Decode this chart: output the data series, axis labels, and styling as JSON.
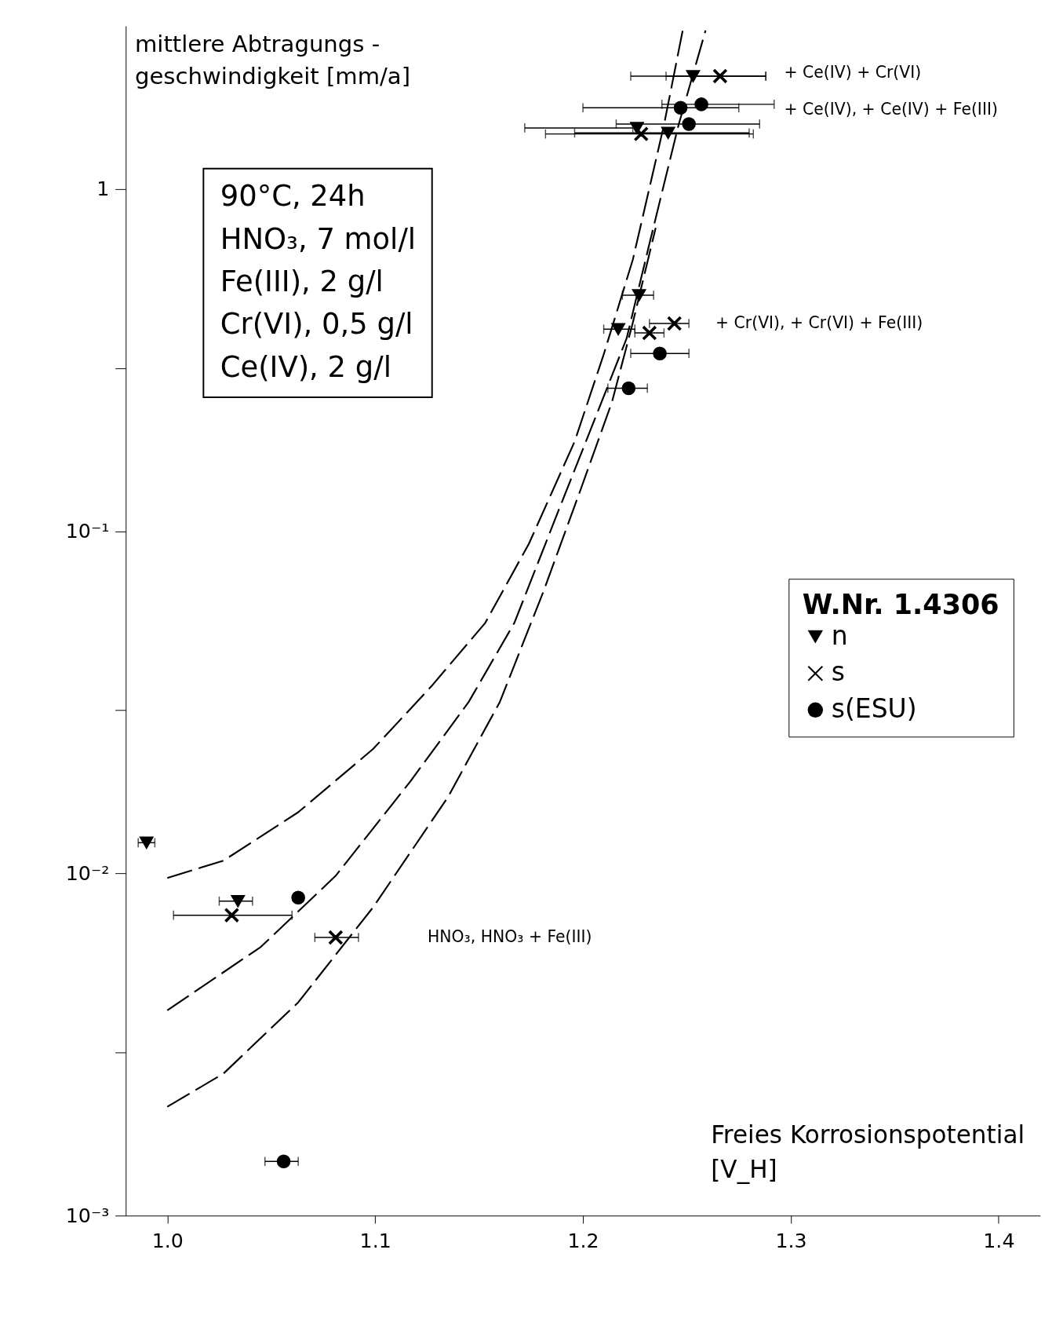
{
  "chart_data": {
    "type": "scatter",
    "ylabel": "mittlere Abtragungs -\ngeschwindigkeit [mm/a]",
    "xlabel": "Freies Korrosionspotential\n[V_H]",
    "legend_title": "W.Nr. 1.4306",
    "legend": "right",
    "grid": false,
    "log": "y",
    "xlim": [
      0.98,
      1.42
    ],
    "xticks": [
      {
        "value": 1.0,
        "label": "1.0"
      },
      1.1,
      1.2,
      1.3,
      1.4
    ],
    "ylim": [
      0.001,
      3
    ],
    "yticks": [
      {
        "value": 0.001,
        "label": "10⁻³"
      },
      {
        "value": 0.003,
        "label": null
      },
      {
        "value": 0.01,
        "label": "10⁻²"
      },
      {
        "value": 0.03,
        "label": null
      },
      {
        "value": 0.1,
        "label": "10⁻¹"
      },
      {
        "value": 0.3,
        "label": null
      },
      1
    ],
    "series": [
      {
        "name": "n",
        "color": "#000000",
        "marker": "triangle",
        "x": [
          1.253,
          1.226,
          1.241,
          1.227,
          1.217,
          0.99,
          1.034
        ],
        "values": [
          2.14,
          1.51,
          1.46,
          0.49,
          0.39,
          0.0123,
          0.0083
        ],
        "xerrors": [
          [
            1.223,
            1.288
          ],
          [
            1.172,
            1.224
          ],
          [
            1.196,
            1.28
          ],
          [
            1.219,
            1.234
          ],
          [
            1.21,
            1.225
          ],
          [
            0.986,
            0.994
          ],
          [
            1.025,
            1.041
          ]
        ]
      },
      {
        "name": "s",
        "color": "#000000",
        "marker": "cross",
        "x": [
          1.266,
          1.228,
          1.244,
          1.232
        ],
        "values": [
          2.14,
          1.45,
          0.405,
          0.38
        ],
        "xerrors": [
          [
            1.24,
            1.288
          ],
          [
            1.182,
            1.282
          ],
          [
            1.232,
            1.251
          ],
          [
            1.225,
            1.239
          ]
        ]
      },
      {
        "name": "s(ESU)",
        "color": "#000000",
        "marker": "circle",
        "x": [
          1.257,
          1.247,
          1.251,
          1.237,
          1.222,
          1.063,
          1.056
        ],
        "values": [
          1.77,
          1.73,
          1.55,
          0.331,
          0.262,
          0.0085,
          0.00144
        ],
        "xerrors": [
          [
            1.238,
            1.292
          ],
          [
            1.2,
            1.275
          ],
          [
            1.216,
            1.285
          ],
          [
            1.223,
            1.251
          ],
          [
            1.212,
            1.231
          ],
          null,
          [
            1.047,
            1.063
          ]
        ]
      },
      {
        "type": "scatter",
        "color": "#000000",
        "marker": "cross",
        "x": [
          1.031,
          1.081
        ],
        "values": [
          0.00755,
          0.0065
        ],
        "xerrors": [
          [
            1.003,
            1.06
          ],
          [
            1.071,
            1.092
          ]
        ]
      },
      {
        "type": "line",
        "color": "#000000",
        "line_style": "dashed",
        "x": [
          1.0,
          1.027,
          1.063,
          1.099,
          1.127,
          1.153,
          1.174,
          1.196,
          1.21,
          1.224,
          1.239,
          1.248
        ],
        "values": [
          0.0097,
          0.0109,
          0.0151,
          0.0231,
          0.0352,
          0.054,
          0.092,
          0.183,
          0.329,
          0.622,
          1.54,
          2.91
        ]
      },
      {
        "type": "line",
        "color": "#000000",
        "line_style": "dashed",
        "x": [
          1.0,
          1.045,
          1.081,
          1.117,
          1.145,
          1.167,
          1.188,
          1.206,
          1.221,
          1.232,
          1.246,
          1.259
        ],
        "values": [
          0.00398,
          0.0061,
          0.00984,
          0.0186,
          0.0317,
          0.054,
          0.114,
          0.215,
          0.366,
          0.693,
          1.54,
          2.91
        ]
      },
      {
        "type": "line",
        "color": "#000000",
        "line_style": "dashed",
        "x": [
          1.0,
          1.027,
          1.063,
          1.099,
          1.135,
          1.16,
          1.181,
          1.199,
          1.214,
          1.224,
          1.235
        ],
        "values": [
          0.00208,
          0.0026,
          0.0042,
          0.00796,
          0.0167,
          0.0317,
          0.0667,
          0.133,
          0.239,
          0.407,
          0.771
        ]
      }
    ],
    "annotations": [
      "90°C, 24h\nHNO₃, 7 mol/l\nFe(III), 2 g/l\nCr(VI), 0,5 g/l\nCe(IV), 2 g/l",
      "+ Ce(IV) + Cr(VI)",
      "+ Ce(IV), + Ce(IV) + Fe(III)",
      "+ Cr(VI), + Cr(VI) + Fe(III)",
      "HNO₃, HNO₃ + Fe(III)"
    ]
  }
}
